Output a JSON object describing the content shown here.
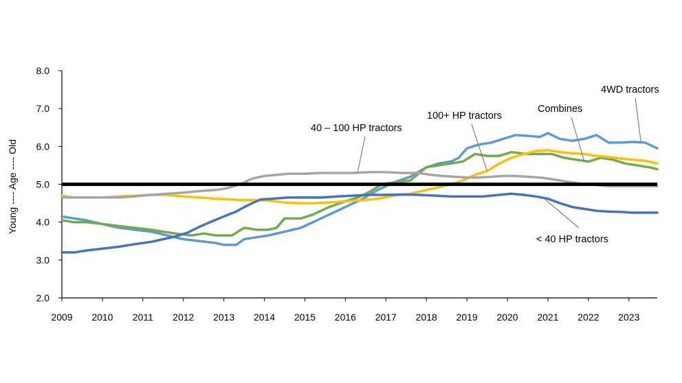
{
  "chart_data": {
    "type": "line",
    "title": "",
    "xlabel": "",
    "ylabel": "Young ---- Age ---- Old",
    "xlim": [
      2009,
      2023.7
    ],
    "ylim": [
      2.0,
      8.0
    ],
    "x_ticks": [
      "2009",
      "2010",
      "2011",
      "2012",
      "2013",
      "2014",
      "2015",
      "2016",
      "2017",
      "2018",
      "2019",
      "2020",
      "2021",
      "2022",
      "2023"
    ],
    "y_ticks": [
      "2.0",
      "3.0",
      "4.0",
      "5.0",
      "6.0",
      "7.0",
      "8.0"
    ],
    "reference_line": 5.0,
    "grid": false,
    "legend": "none (direct annotations)",
    "series": [
      {
        "name": "4WD tractors",
        "color": "#5b9bd5",
        "x": [
          2009.0,
          2009.3,
          2009.6,
          2010.0,
          2010.4,
          2010.8,
          2011.2,
          2011.6,
          2012.0,
          2012.4,
          2012.8,
          2013.0,
          2013.3,
          2013.5,
          2013.8,
          2014.1,
          2014.5,
          2014.9,
          2015.2,
          2015.6,
          2016.0,
          2016.4,
          2016.8,
          2017.2,
          2017.6,
          2018.0,
          2018.3,
          2018.6,
          2018.8,
          2019.0,
          2019.3,
          2019.6,
          2019.9,
          2020.2,
          2020.5,
          2020.8,
          2021.0,
          2021.3,
          2021.6,
          2021.9,
          2022.2,
          2022.5,
          2022.8,
          2023.1,
          2023.4,
          2023.7
        ],
        "y": [
          4.15,
          4.1,
          4.05,
          3.95,
          3.85,
          3.8,
          3.75,
          3.65,
          3.55,
          3.5,
          3.45,
          3.4,
          3.4,
          3.55,
          3.6,
          3.65,
          3.75,
          3.85,
          4.0,
          4.2,
          4.4,
          4.6,
          4.85,
          5.05,
          5.2,
          5.45,
          5.55,
          5.6,
          5.7,
          5.95,
          6.05,
          6.1,
          6.2,
          6.3,
          6.28,
          6.25,
          6.35,
          6.2,
          6.15,
          6.2,
          6.3,
          6.1,
          6.1,
          6.12,
          6.1,
          5.95
        ]
      },
      {
        "name": "Combines",
        "color": "#70ad47",
        "x": [
          2009.0,
          2009.3,
          2009.6,
          2010.0,
          2010.4,
          2010.8,
          2011.2,
          2011.5,
          2011.8,
          2012.2,
          2012.5,
          2012.8,
          2013.2,
          2013.5,
          2013.8,
          2014.1,
          2014.3,
          2014.5,
          2014.9,
          2015.2,
          2015.6,
          2016.0,
          2016.3,
          2016.6,
          2016.9,
          2017.2,
          2017.6,
          2018.0,
          2018.3,
          2018.6,
          2018.9,
          2019.2,
          2019.5,
          2019.8,
          2020.1,
          2020.5,
          2020.8,
          2021.1,
          2021.4,
          2021.7,
          2022.0,
          2022.3,
          2022.6,
          2022.9,
          2023.2,
          2023.5,
          2023.7
        ],
        "y": [
          4.05,
          4.0,
          4.0,
          3.95,
          3.9,
          3.85,
          3.8,
          3.75,
          3.7,
          3.65,
          3.7,
          3.65,
          3.65,
          3.85,
          3.8,
          3.8,
          3.85,
          4.1,
          4.1,
          4.2,
          4.4,
          4.55,
          4.65,
          4.8,
          5.0,
          5.05,
          5.1,
          5.45,
          5.5,
          5.55,
          5.6,
          5.8,
          5.75,
          5.75,
          5.85,
          5.8,
          5.8,
          5.8,
          5.7,
          5.65,
          5.6,
          5.7,
          5.65,
          5.55,
          5.5,
          5.45,
          5.4
        ]
      },
      {
        "name": "100+ HP tractors",
        "color": "#ffc000",
        "x": [
          2009.0,
          2009.3,
          2009.6,
          2010.0,
          2010.4,
          2010.8,
          2011.2,
          2011.6,
          2012.0,
          2012.4,
          2012.8,
          2013.2,
          2013.5,
          2013.8,
          2014.1,
          2014.5,
          2014.9,
          2015.2,
          2015.6,
          2016.0,
          2016.4,
          2016.8,
          2017.2,
          2017.6,
          2018.0,
          2018.3,
          2018.6,
          2018.9,
          2019.2,
          2019.5,
          2019.8,
          2020.1,
          2020.4,
          2020.7,
          2021.0,
          2021.3,
          2021.6,
          2021.9,
          2022.2,
          2022.5,
          2022.8,
          2023.1,
          2023.4,
          2023.7
        ],
        "y": [
          4.7,
          4.65,
          4.65,
          4.65,
          4.68,
          4.7,
          4.72,
          4.72,
          4.68,
          4.65,
          4.62,
          4.6,
          4.58,
          4.58,
          4.57,
          4.52,
          4.5,
          4.5,
          4.52,
          4.55,
          4.58,
          4.62,
          4.7,
          4.75,
          4.85,
          4.92,
          5.0,
          5.1,
          5.25,
          5.35,
          5.55,
          5.7,
          5.8,
          5.88,
          5.9,
          5.85,
          5.82,
          5.8,
          5.75,
          5.72,
          5.68,
          5.65,
          5.62,
          5.55
        ]
      },
      {
        "name": "40 – 100 HP tractors",
        "color": "#a5a5a5",
        "x": [
          2009.0,
          2009.3,
          2009.6,
          2010.0,
          2010.4,
          2010.8,
          2011.2,
          2011.6,
          2012.0,
          2012.4,
          2012.8,
          2013.1,
          2013.4,
          2013.7,
          2014.0,
          2014.3,
          2014.6,
          2015.0,
          2015.4,
          2015.8,
          2016.2,
          2016.6,
          2017.0,
          2017.4,
          2017.8,
          2018.1,
          2018.4,
          2018.7,
          2019.0,
          2019.3,
          2019.6,
          2019.9,
          2020.2,
          2020.5,
          2020.8,
          2021.0,
          2021.3,
          2021.6,
          2021.9,
          2022.2,
          2022.5,
          2022.8,
          2023.1,
          2023.4,
          2023.7
        ],
        "y": [
          4.65,
          4.65,
          4.65,
          4.65,
          4.65,
          4.68,
          4.72,
          4.75,
          4.78,
          4.82,
          4.85,
          4.9,
          5.0,
          5.15,
          5.22,
          5.25,
          5.28,
          5.28,
          5.3,
          5.3,
          5.3,
          5.32,
          5.32,
          5.3,
          5.3,
          5.25,
          5.22,
          5.2,
          5.18,
          5.18,
          5.2,
          5.22,
          5.22,
          5.2,
          5.18,
          5.15,
          5.1,
          5.05,
          5.0,
          4.98,
          4.95,
          4.95,
          4.95,
          4.95,
          4.95
        ]
      },
      {
        "name": "< 40 HP tractors",
        "color": "#4472c4",
        "x": [
          2009.0,
          2009.3,
          2009.6,
          2010.0,
          2010.4,
          2010.8,
          2011.2,
          2011.5,
          2011.8,
          2012.1,
          2012.4,
          2012.7,
          2013.0,
          2013.3,
          2013.6,
          2013.9,
          2014.2,
          2014.6,
          2015.0,
          2015.4,
          2015.8,
          2016.2,
          2016.6,
          2017.0,
          2017.4,
          2017.8,
          2018.2,
          2018.6,
          2019.0,
          2019.4,
          2019.8,
          2020.1,
          2020.4,
          2020.7,
          2021.0,
          2021.3,
          2021.6,
          2021.9,
          2022.2,
          2022.5,
          2022.8,
          2023.1,
          2023.4,
          2023.7
        ],
        "y": [
          3.2,
          3.2,
          3.25,
          3.3,
          3.35,
          3.42,
          3.48,
          3.55,
          3.62,
          3.72,
          3.88,
          4.02,
          4.15,
          4.28,
          4.45,
          4.6,
          4.62,
          4.65,
          4.65,
          4.65,
          4.68,
          4.7,
          4.72,
          4.72,
          4.73,
          4.72,
          4.7,
          4.68,
          4.68,
          4.68,
          4.72,
          4.75,
          4.72,
          4.68,
          4.62,
          4.5,
          4.4,
          4.35,
          4.3,
          4.28,
          4.27,
          4.25,
          4.25,
          4.25
        ]
      }
    ],
    "annotations": [
      {
        "text": "4WD tractors",
        "series": "4WD tractors",
        "x": 2023.3,
        "y": 6.1
      },
      {
        "text": "Combines",
        "series": "Combines",
        "x": 2021.9,
        "y": 5.6
      },
      {
        "text": "100+ HP tractors",
        "series": "100+ HP tractors",
        "x": 2019.5,
        "y": 5.35
      },
      {
        "text": "40 – 100 HP tractors",
        "series": "40 – 100 HP tractors",
        "x": 2016.3,
        "y": 5.3
      },
      {
        "text": "< 40 HP tractors",
        "series": "< 40 HP tractors",
        "x": 2020.9,
        "y": 4.63
      }
    ]
  }
}
